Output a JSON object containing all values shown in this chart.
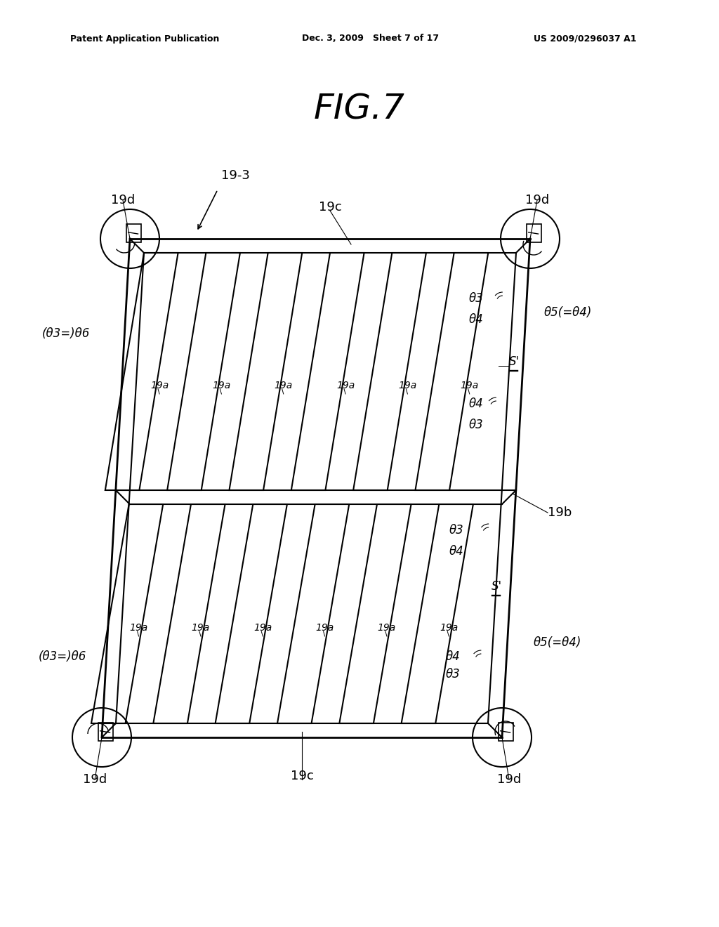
{
  "title": "FIG.7",
  "header_left": "Patent Application Publication",
  "header_mid": "Dec. 3, 2009   Sheet 7 of 17",
  "header_right": "US 2009/0296037 A1",
  "bg_color": "#ffffff",
  "line_color": "#000000",
  "font_color": "#000000"
}
